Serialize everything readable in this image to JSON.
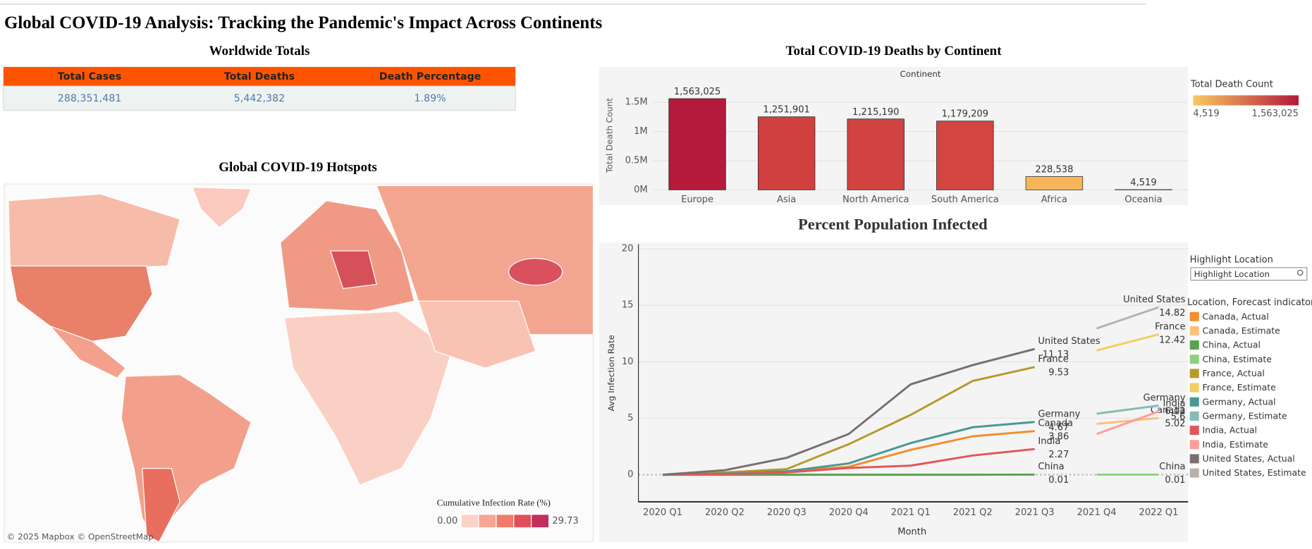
{
  "title": "Global COVID-19 Analysis: Tracking the Pandemic's Impact Across Continents",
  "totals": {
    "title": "Worldwide Totals",
    "columns": [
      "Total Cases",
      "Total Deaths",
      "Death Percentage"
    ],
    "rows": [
      [
        "288,351,481",
        "5,442,382",
        "1.89%"
      ]
    ]
  },
  "map": {
    "title": "Global COVID-19 Hotspots",
    "legend_title": "Cumulative Infection Rate (%)",
    "legend_min": {
      "value": 0,
      "label": "0.00"
    },
    "legend_max": 29.73,
    "legend_colors": [
      "#fcd3c9",
      "#f6a592",
      "#f07c68",
      "#e0505c",
      "#c0305a"
    ],
    "attribution": "© 2025 Mapbox © OpenStreetMap"
  },
  "chart_data": [
    {
      "type": "bar",
      "title": "Total COVID-19 Deaths by Continent",
      "column_header": "Continent",
      "ylabel": "Total Death Count",
      "categories": [
        "Europe",
        "Asia",
        "North America",
        "South America",
        "Africa",
        "Oceania"
      ],
      "values": [
        1563025,
        1251901,
        1215190,
        1179209,
        228538,
        4519
      ],
      "value_labels": [
        "1,563,025",
        "1,251,901",
        "1,215,190",
        "1,179,209",
        "228,538",
        "4,519"
      ],
      "colors": [
        "#b5193b",
        "#cf403f",
        "#d04340",
        "#d24540",
        "#f7b55a",
        "#f8c862"
      ],
      "ylim": [
        0,
        1820000
      ],
      "yticks": [
        {
          "value": 0,
          "label": "0M"
        },
        {
          "value": 500000,
          "label": "0.5M"
        },
        {
          "value": 1000000,
          "label": "1M"
        },
        {
          "value": 1500000,
          "label": "1.5M"
        }
      ],
      "color_legend": {
        "title": "Total Death Count",
        "min": {
          "value": 4519,
          "label": "4,519"
        },
        "max": {
          "value": 1563025,
          "label": "1,563,025"
        },
        "colors": [
          "#f8c862",
          "#b5193b"
        ]
      }
    },
    {
      "type": "line",
      "title": "Percent Population Infected",
      "xlabel": "Month",
      "ylabel": "Avg Infection Rate",
      "categories": [
        "2020 Q1",
        "2020 Q2",
        "2020 Q3",
        "2020 Q4",
        "2021 Q1",
        "2021 Q2",
        "2021 Q3",
        "2021 Q4",
        "2022 Q1"
      ],
      "ylim": [
        -2.4,
        20.4
      ],
      "yticks": [
        0,
        5,
        10,
        15,
        20
      ],
      "grid": true,
      "highlight_title": "Highlight Location",
      "highlight_placeholder": "Highlight Location",
      "legend_title": "Location, Forecast indicator",
      "series": [
        {
          "name": "Canada, Actual",
          "location": "Canada",
          "color": "#f28e2b",
          "values": [
            0,
            0.1,
            0.3,
            0.7,
            2.2,
            3.4,
            3.86,
            null,
            null
          ]
        },
        {
          "name": "Canada, Estimate",
          "location": "Canada",
          "color": "#ffbe7d",
          "values": [
            null,
            null,
            null,
            null,
            null,
            null,
            null,
            4.5,
            5.02
          ]
        },
        {
          "name": "China, Actual",
          "location": "China",
          "color": "#59a14f",
          "values": [
            0,
            0,
            0,
            0,
            0,
            0,
            0.01,
            null,
            null
          ]
        },
        {
          "name": "China, Estimate",
          "location": "China",
          "color": "#8cd17d",
          "values": [
            null,
            null,
            null,
            null,
            null,
            null,
            null,
            0.01,
            0.01
          ]
        },
        {
          "name": "France, Actual",
          "location": "France",
          "color": "#b6992d",
          "values": [
            0,
            0.2,
            0.5,
            2.7,
            5.3,
            8.3,
            9.53,
            null,
            null
          ]
        },
        {
          "name": "France, Estimate",
          "location": "France",
          "color": "#f1ce63",
          "values": [
            null,
            null,
            null,
            null,
            null,
            null,
            null,
            11.0,
            12.42
          ]
        },
        {
          "name": "Germany, Actual",
          "location": "Germany",
          "color": "#499894",
          "values": [
            0,
            0.1,
            0.3,
            1.0,
            2.8,
            4.2,
            4.67,
            null,
            null
          ]
        },
        {
          "name": "Germany, Estimate",
          "location": "Germany",
          "color": "#86bcb6",
          "values": [
            null,
            null,
            null,
            null,
            null,
            null,
            null,
            5.4,
            6.12
          ]
        },
        {
          "name": "India, Actual",
          "location": "India",
          "color": "#e15759",
          "values": [
            0,
            0.05,
            0.2,
            0.6,
            0.8,
            1.7,
            2.27,
            null,
            null
          ]
        },
        {
          "name": "India, Estimate",
          "location": "India",
          "color": "#ff9d9a",
          "values": [
            null,
            null,
            null,
            null,
            null,
            null,
            null,
            3.6,
            5.6
          ]
        },
        {
          "name": "United States, Actual",
          "location": "United States",
          "color": "#79706e",
          "values": [
            0,
            0.4,
            1.5,
            3.6,
            8.0,
            9.7,
            11.13,
            null,
            null
          ]
        },
        {
          "name": "United States, Estimate",
          "location": "United States",
          "color": "#bab0ac",
          "values": [
            null,
            null,
            null,
            null,
            null,
            null,
            null,
            12.95,
            14.82
          ]
        }
      ]
    }
  ]
}
